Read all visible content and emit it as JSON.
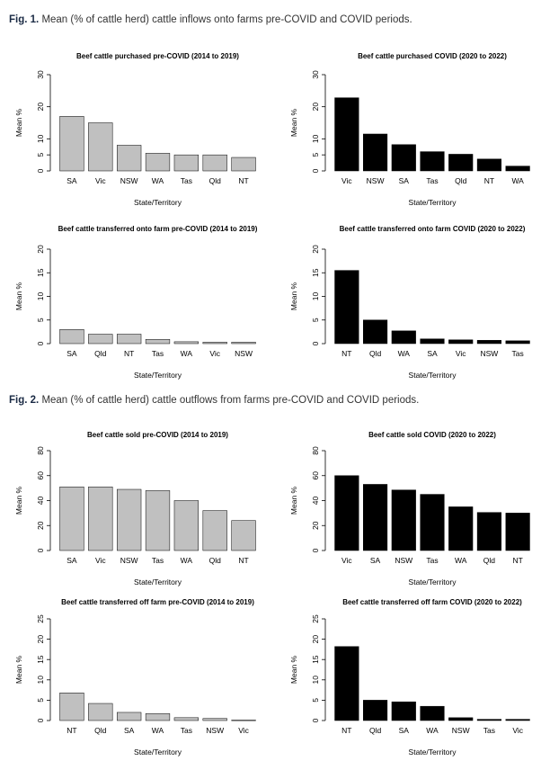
{
  "captions": {
    "fig1_label": "Fig. 1.",
    "fig1_text": "Mean (% of cattle herd) cattle inflows onto farms pre-COVID and COVID periods.",
    "fig2_label": "Fig. 2.",
    "fig2_text": "Mean (% of cattle herd) cattle outflows from farms pre-COVID and COVID periods."
  },
  "colors": {
    "pre": "#c0c0c0",
    "covid": "#000000"
  },
  "chart_data": [
    {
      "type": "bar",
      "title": "Beef cattle purchased pre-COVID (2014 to 2019)",
      "xlabel": "State/Territory",
      "ylabel": "Mean %",
      "categories": [
        "SA",
        "Vic",
        "NSW",
        "WA",
        "Tas",
        "Qld",
        "NT"
      ],
      "values": [
        17,
        15,
        8,
        5.5,
        5,
        5,
        4.2
      ],
      "ylim": [
        0,
        30
      ],
      "yticks": [
        0,
        5,
        10,
        20,
        30
      ],
      "color": "pre"
    },
    {
      "type": "bar",
      "title": "Beef cattle purchased COVID (2020 to 2022)",
      "xlabel": "State/Territory",
      "ylabel": "Mean %",
      "categories": [
        "Vic",
        "NSW",
        "SA",
        "Tas",
        "Qld",
        "NT",
        "WA"
      ],
      "values": [
        22.8,
        11.5,
        8.2,
        6,
        5.2,
        3.7,
        1.5
      ],
      "ylim": [
        0,
        30
      ],
      "yticks": [
        0,
        5,
        10,
        20,
        30
      ],
      "color": "covid"
    },
    {
      "type": "bar",
      "title": "Beef cattle transferred onto farm pre-COVID (2014 to 2019)",
      "xlabel": "State/Territory",
      "ylabel": "Mean %",
      "categories": [
        "SA",
        "Qld",
        "NT",
        "Tas",
        "WA",
        "Vic",
        "NSW"
      ],
      "values": [
        3,
        2,
        2,
        0.9,
        0.4,
        0.3,
        0.3
      ],
      "ylim": [
        0,
        20
      ],
      "yticks": [
        0,
        5,
        10,
        15,
        20
      ],
      "color": "pre"
    },
    {
      "type": "bar",
      "title": "Beef cattle transferred onto farm COVID (2020 to 2022)",
      "xlabel": "State/Territory",
      "ylabel": "Mean %",
      "categories": [
        "NT",
        "Qld",
        "WA",
        "SA",
        "Vic",
        "NSW",
        "Tas"
      ],
      "values": [
        15.5,
        5,
        2.7,
        1,
        0.8,
        0.7,
        0.6
      ],
      "ylim": [
        0,
        20
      ],
      "yticks": [
        0,
        5,
        10,
        15,
        20
      ],
      "color": "covid"
    },
    {
      "type": "bar",
      "title": "Beef cattle sold pre-COVID (2014 to 2019)",
      "xlabel": "State/Territory",
      "ylabel": "Mean %",
      "categories": [
        "SA",
        "Vic",
        "NSW",
        "Tas",
        "WA",
        "Qld",
        "NT"
      ],
      "values": [
        51,
        51,
        49,
        48,
        40,
        32,
        24
      ],
      "ylim": [
        0,
        80
      ],
      "yticks": [
        0,
        20,
        40,
        60,
        80
      ],
      "color": "pre"
    },
    {
      "type": "bar",
      "title": "Beef cattle sold COVID (2020 to 2022)",
      "xlabel": "State/Territory",
      "ylabel": "Mean %",
      "categories": [
        "Vic",
        "SA",
        "NSW",
        "Tas",
        "WA",
        "Qld",
        "NT"
      ],
      "values": [
        60,
        53,
        48.5,
        45,
        35,
        30.5,
        30
      ],
      "ylim": [
        0,
        80
      ],
      "yticks": [
        0,
        20,
        40,
        60,
        80
      ],
      "color": "covid"
    },
    {
      "type": "bar",
      "title": "Beef cattle transferred off farm pre-COVID (2014 to 2019)",
      "xlabel": "State/Territory",
      "ylabel": "Mean %",
      "categories": [
        "NT",
        "Qld",
        "SA",
        "WA",
        "Tas",
        "NSW",
        "Vic"
      ],
      "values": [
        6.8,
        4.2,
        2,
        1.7,
        0.7,
        0.5,
        0.1
      ],
      "ylim": [
        0,
        25
      ],
      "yticks": [
        0,
        5,
        10,
        15,
        20,
        25
      ],
      "color": "pre"
    },
    {
      "type": "bar",
      "title": "Beef cattle transferred off farm COVID (2020 to 2022)",
      "xlabel": "State/Territory",
      "ylabel": "Mean %",
      "categories": [
        "NT",
        "Qld",
        "SA",
        "WA",
        "NSW",
        "Tas",
        "Vic"
      ],
      "values": [
        18.2,
        5,
        4.6,
        3.5,
        0.7,
        0.3,
        0.3
      ],
      "ylim": [
        0,
        25
      ],
      "yticks": [
        0,
        5,
        10,
        15,
        20,
        25
      ],
      "color": "covid"
    }
  ]
}
